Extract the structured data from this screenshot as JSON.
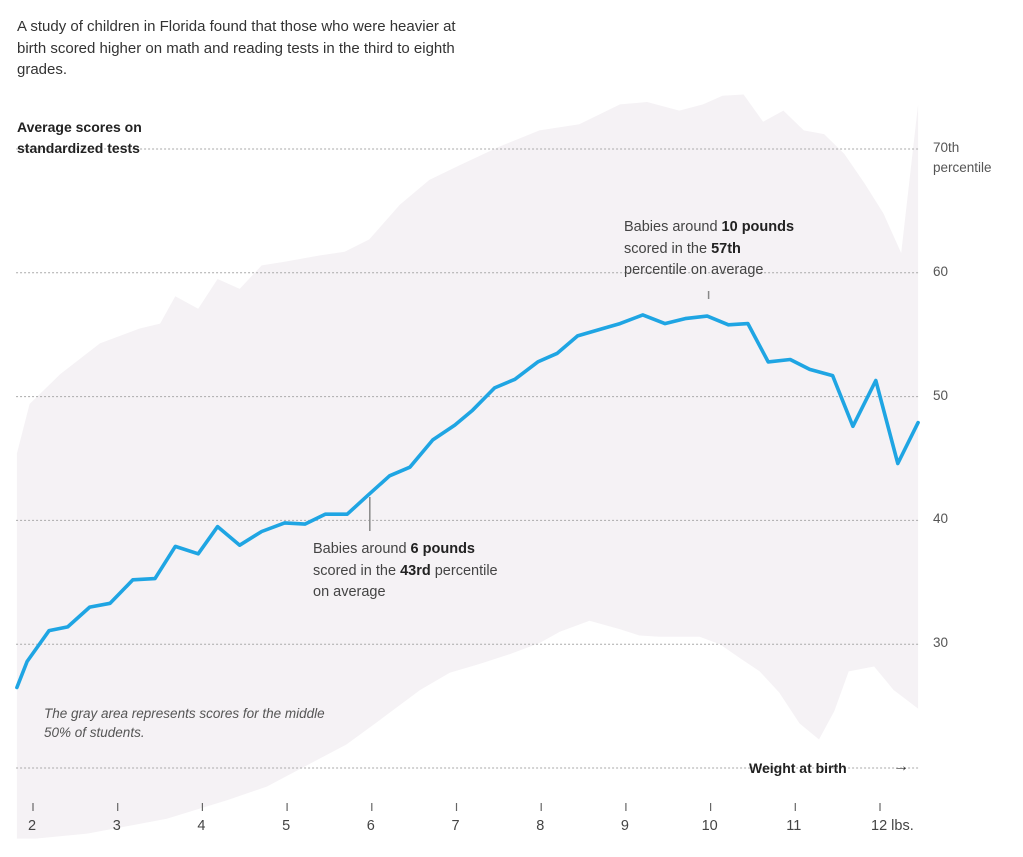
{
  "intro": "A study of children in Florida found that those who were heavier at birth scored higher on math and reading tests in the third to eighth grades.",
  "note": "The gray area represents scores for the middle 50% of students.",
  "annotations": [
    {
      "pre": "Babies around ",
      "bold1": "10 pounds",
      "mid": " scored in the ",
      "bold2": "57th",
      "post": " percentile on average",
      "x": 10.0
    },
    {
      "pre": "Babies around ",
      "bold1": "6 pounds",
      "mid": " scored in the ",
      "bold2": "43rd",
      "post": " percentile on average",
      "x": 6.0
    }
  ],
  "colors": {
    "line": "#1fa5e3",
    "band": "#f5f2f5",
    "grid": "#aaaaaa"
  },
  "chart_data": {
    "type": "line",
    "title": "Average scores on standardized tests",
    "xlabel": "Weight at birth",
    "xlabel_arrow": "→",
    "ylabel": "",
    "xlim": [
      1.8,
      12.45
    ],
    "ylim": [
      20,
      75
    ],
    "grid": true,
    "y_ticks": [
      {
        "value": 70,
        "label": "70th",
        "label2": "percentile"
      },
      {
        "value": 60,
        "label": "60"
      },
      {
        "value": 50,
        "label": "50"
      },
      {
        "value": 40,
        "label": "40"
      },
      {
        "value": 30,
        "label": "30"
      },
      {
        "value": 20,
        "label": ""
      }
    ],
    "x_ticks": [
      {
        "value": 2,
        "label": "2"
      },
      {
        "value": 3,
        "label": "3"
      },
      {
        "value": 4,
        "label": "4"
      },
      {
        "value": 5,
        "label": "5"
      },
      {
        "value": 6,
        "label": "6"
      },
      {
        "value": 7,
        "label": "7"
      },
      {
        "value": 8,
        "label": "8"
      },
      {
        "value": 9,
        "label": "9"
      },
      {
        "value": 10,
        "label": "10"
      },
      {
        "value": 11,
        "label": "11"
      },
      {
        "value": 12,
        "label": "12 lbs."
      }
    ],
    "series": [
      {
        "name": "Average score",
        "x": [
          1.81,
          1.93,
          2.19,
          2.41,
          2.67,
          2.91,
          3.18,
          3.44,
          3.68,
          3.95,
          4.18,
          4.44,
          4.7,
          4.97,
          5.21,
          5.45,
          5.71,
          5.95,
          6.21,
          6.45,
          6.72,
          6.98,
          7.19,
          7.45,
          7.69,
          7.96,
          8.19,
          8.43,
          8.73,
          8.93,
          9.2,
          9.46,
          9.7,
          9.96,
          10.21,
          10.44,
          10.68,
          10.94,
          11.17,
          11.44,
          11.68,
          11.95,
          12.21,
          12.45
        ],
        "y": [
          26.5,
          28.6,
          31.1,
          31.4,
          33.0,
          33.3,
          35.2,
          35.3,
          37.9,
          37.3,
          39.5,
          38.0,
          39.1,
          39.8,
          39.7,
          40.5,
          40.5,
          42.0,
          43.6,
          44.3,
          46.5,
          47.7,
          48.9,
          50.7,
          51.4,
          52.8,
          53.5,
          54.9,
          55.5,
          55.9,
          56.6,
          55.9,
          56.3,
          56.5,
          55.8,
          55.9,
          52.8,
          53.0,
          52.2,
          51.7,
          47.6,
          51.3,
          44.6,
          47.9
        ]
      },
      {
        "name": "Middle 50% upper bound",
        "x": [
          1.81,
          1.96,
          2.32,
          2.79,
          3.26,
          3.5,
          3.68,
          3.95,
          4.18,
          4.44,
          4.7,
          4.97,
          5.38,
          5.68,
          5.97,
          6.33,
          6.68,
          7.04,
          7.51,
          7.98,
          8.45,
          8.93,
          9.25,
          9.63,
          9.91,
          10.14,
          10.39,
          10.62,
          10.86,
          11.1,
          11.34,
          11.58,
          11.82,
          12.04,
          12.25,
          12.45
        ],
        "y": [
          45.4,
          49.4,
          51.8,
          54.3,
          55.5,
          55.9,
          58.1,
          57.1,
          59.5,
          58.7,
          60.6,
          60.9,
          61.4,
          61.7,
          62.7,
          65.5,
          67.5,
          68.7,
          70.2,
          71.5,
          72.0,
          73.6,
          73.8,
          73.1,
          73.6,
          74.3,
          74.4,
          72.2,
          73.1,
          71.5,
          71.2,
          69.6,
          67.2,
          64.8,
          61.6,
          73.6
        ]
      },
      {
        "name": "Middle 50% lower bound",
        "x": [
          1.81,
          2.03,
          2.64,
          3.58,
          4.29,
          4.76,
          5.23,
          5.7,
          6.1,
          6.57,
          6.92,
          7.27,
          7.63,
          7.98,
          8.22,
          8.57,
          8.93,
          9.16,
          9.4,
          9.63,
          9.87,
          10.11,
          10.34,
          10.58,
          10.81,
          11.05,
          11.28,
          11.46,
          11.63,
          11.93,
          12.16,
          12.45
        ],
        "y": [
          14.3,
          14.3,
          14.7,
          15.9,
          17.4,
          18.5,
          20.2,
          21.9,
          23.9,
          26.3,
          27.7,
          28.4,
          29.2,
          30.1,
          31.0,
          31.9,
          31.2,
          30.7,
          30.6,
          30.6,
          30.6,
          30.0,
          28.9,
          27.8,
          26.1,
          23.6,
          22.3,
          24.6,
          27.8,
          28.2,
          26.3,
          24.8
        ]
      }
    ]
  }
}
